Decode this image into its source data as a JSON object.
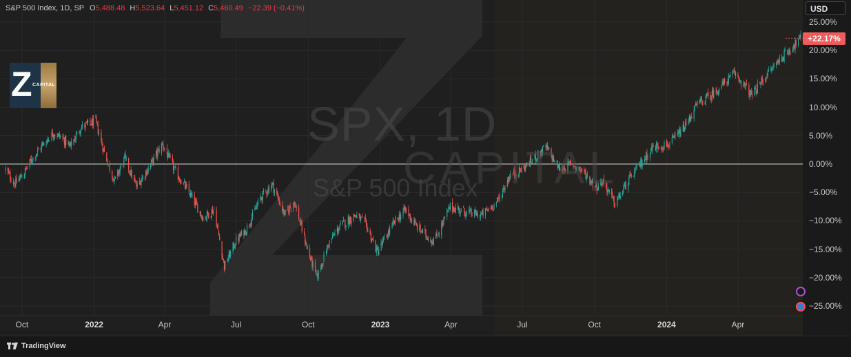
{
  "header": {
    "symbol_info": "S&P 500 Index, 1D, SP",
    "open_label": "O",
    "open": "5,488.48",
    "high_label": "H",
    "high": "5,523.64",
    "low_label": "L",
    "low": "5,451.12",
    "close_label": "C",
    "close": "5,460.49",
    "change": "−22.39 (−0.41%)"
  },
  "currency": "USD",
  "current_value_label": "+22.17%",
  "watermark": {
    "title": "SPX, 1D",
    "subtitle": "S&P 500 Index",
    "brand": "CAPITAL"
  },
  "logo": {
    "letter": "Z",
    "text": "CAPITAL"
  },
  "footer": {
    "brand": "TradingView"
  },
  "colors": {
    "up": "#26a69a",
    "down": "#ef5350",
    "badge": "#f15b5b",
    "background": "#1f1f1f"
  },
  "chart_data": {
    "type": "candlestick",
    "title": "",
    "xlabel": "",
    "ylabel": "",
    "y_unit": "percent",
    "ylim": [
      -26,
      26
    ],
    "y_ticks": [
      "25.00%",
      "20.00%",
      "15.00%",
      "10.00%",
      "5.00%",
      "0.00%",
      "−5.00%",
      "−10.00%",
      "−15.00%",
      "−20.00%",
      "−25.00%"
    ],
    "y_tick_values": [
      25,
      20,
      15,
      10,
      5,
      0,
      -5,
      -10,
      -15,
      -20,
      -25
    ],
    "x_ticks": [
      {
        "label": "Oct",
        "date": "2021-10-01",
        "bold": false
      },
      {
        "label": "2022",
        "date": "2022-01-01",
        "bold": true
      },
      {
        "label": "Apr",
        "date": "2022-04-01",
        "bold": false
      },
      {
        "label": "Jul",
        "date": "2022-07-01",
        "bold": false
      },
      {
        "label": "Oct",
        "date": "2022-10-01",
        "bold": false
      },
      {
        "label": "2023",
        "date": "2023-01-01",
        "bold": true
      },
      {
        "label": "Apr",
        "date": "2023-04-01",
        "bold": false
      },
      {
        "label": "Jul",
        "date": "2023-07-01",
        "bold": false
      },
      {
        "label": "Oct",
        "date": "2023-10-01",
        "bold": false
      },
      {
        "label": "2024",
        "date": "2024-01-01",
        "bold": true
      },
      {
        "label": "Apr",
        "date": "2024-04-01",
        "bold": false
      }
    ],
    "x_range": [
      "2021-09-10",
      "2024-06-20"
    ],
    "baseline": 0,
    "last_value": 22.17,
    "path_dates": [
      "2021-09-10",
      "2021-09-22",
      "2021-10-04",
      "2021-10-12",
      "2021-10-25",
      "2021-11-10",
      "2021-11-22",
      "2021-12-01",
      "2021-12-15",
      "2022-01-03",
      "2022-01-14",
      "2022-01-27",
      "2022-02-09",
      "2022-02-24",
      "2022-03-10",
      "2022-03-29",
      "2022-04-15",
      "2022-05-02",
      "2022-05-20",
      "2022-06-03",
      "2022-06-16",
      "2022-07-01",
      "2022-07-14",
      "2022-08-01",
      "2022-08-16",
      "2022-09-01",
      "2022-09-13",
      "2022-09-30",
      "2022-10-12",
      "2022-10-27",
      "2022-11-10",
      "2022-11-30",
      "2022-12-13",
      "2022-12-28",
      "2023-01-20",
      "2023-02-02",
      "2023-02-16",
      "2023-03-08",
      "2023-03-13",
      "2023-03-31",
      "2023-04-20",
      "2023-05-10",
      "2023-05-31",
      "2023-06-15",
      "2023-06-30",
      "2023-07-20",
      "2023-07-31",
      "2023-08-18",
      "2023-09-01",
      "2023-09-14",
      "2023-10-03",
      "2023-10-12",
      "2023-10-27",
      "2023-11-13",
      "2023-12-01",
      "2023-12-15",
      "2024-01-05",
      "2024-01-24",
      "2024-02-09",
      "2024-03-01",
      "2024-03-28",
      "2024-04-19",
      "2024-05-01",
      "2024-05-21",
      "2024-06-12",
      "2024-06-20"
    ],
    "path_values": [
      -1.0,
      -3.5,
      -1.5,
      0.5,
      3.0,
      5.5,
      4.5,
      3.0,
      6.5,
      7.5,
      2.0,
      -3.0,
      1.0,
      -4.0,
      -1.0,
      3.5,
      -1.5,
      -5.0,
      -9.5,
      -8.0,
      -18.0,
      -13.5,
      -11.5,
      -6.0,
      -3.5,
      -9.0,
      -6.5,
      -15.0,
      -20.0,
      -14.0,
      -11.0,
      -9.0,
      -10.5,
      -15.5,
      -10.0,
      -8.0,
      -11.0,
      -13.5,
      -13.0,
      -7.5,
      -8.5,
      -9.0,
      -6.5,
      -2.0,
      -1.0,
      1.5,
      3.0,
      -1.0,
      0.0,
      -1.0,
      -4.0,
      -3.0,
      -7.0,
      -3.0,
      0.5,
      3.0,
      3.5,
      6.5,
      10.5,
      12.5,
      16.0,
      12.0,
      14.5,
      18.0,
      21.0,
      22.17
    ]
  }
}
